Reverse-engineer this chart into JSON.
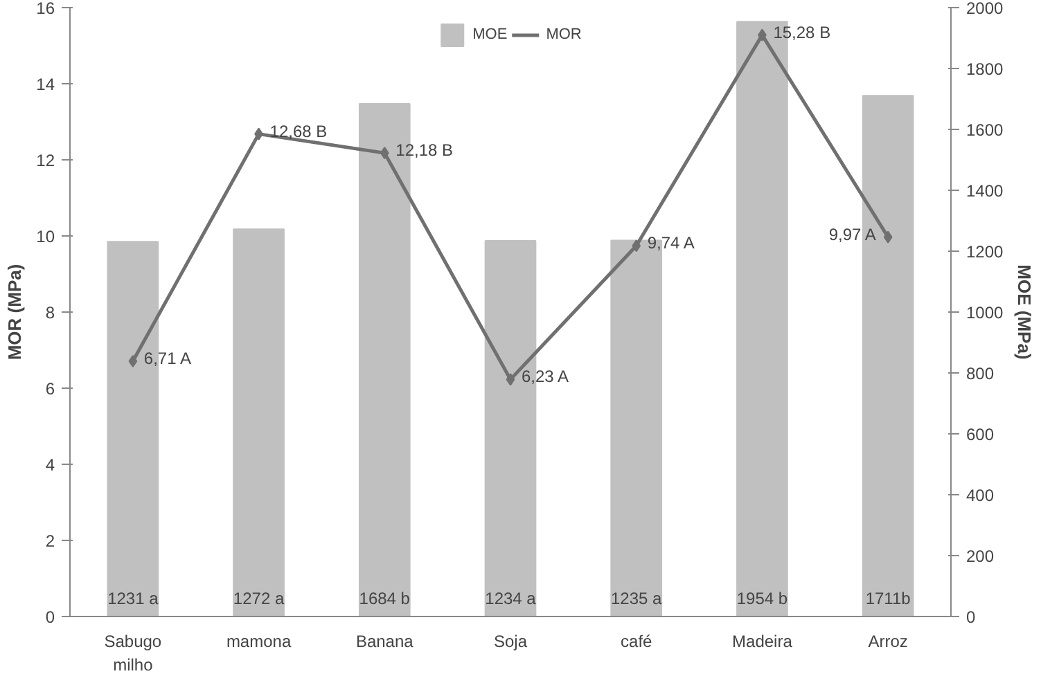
{
  "chart_data": {
    "type": "bar",
    "categories": [
      "Sabugo\nmilho",
      "mamona",
      "Banana",
      "Soja",
      "café",
      "Madeira",
      "Arroz"
    ],
    "ylabel": "MOR (MPa)",
    "y2label": "MOE (MPa)",
    "ylim": [
      0,
      16
    ],
    "yticks": [
      0,
      2,
      4,
      6,
      8,
      10,
      12,
      14,
      16
    ],
    "y2lim": [
      0,
      2000
    ],
    "y2ticks": [
      0,
      200,
      400,
      600,
      800,
      1000,
      1200,
      1400,
      1600,
      1800,
      2000
    ],
    "grid": false,
    "legend": "top",
    "series": [
      {
        "name": "MOE",
        "axis": "y2",
        "color": "#c0c0c0",
        "values": [
          1231,
          1272,
          1684,
          1234,
          1235,
          1954,
          1711
        ],
        "value_labels": [
          "1231 a",
          "1272 a",
          "1684 b",
          "1234 a",
          "1235 a",
          "1954 b",
          "1711b"
        ]
      },
      {
        "name": "MOR",
        "type": "line",
        "color": "#707070",
        "marker": "diamond",
        "values": [
          6.71,
          12.68,
          12.18,
          6.23,
          9.74,
          15.28,
          9.97
        ],
        "value_labels": [
          "6,71 A",
          "12,68 B",
          "12,18 B",
          "6,23 A",
          "9,74 A",
          "15,28 B",
          "9,97 A"
        ]
      }
    ]
  }
}
